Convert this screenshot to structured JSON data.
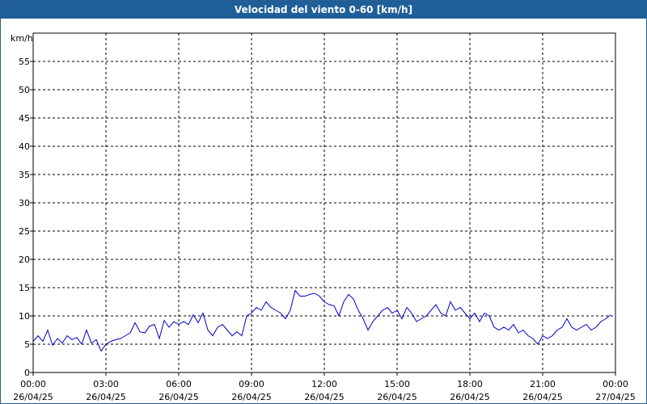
{
  "window": {
    "title": "Velocidad del viento 0-60 [km/h]"
  },
  "chart_data": {
    "type": "line",
    "title": "Velocidad del viento 0-60 [km/h]",
    "ylabel": "km/h",
    "xlabel": "",
    "ylim": [
      0,
      60
    ],
    "xlim": [
      0,
      24
    ],
    "y_ticks": [
      "0",
      "5",
      "10",
      "15",
      "20",
      "25",
      "30",
      "35",
      "40",
      "45",
      "50",
      "55"
    ],
    "x_ticks": [
      {
        "time": "00:00",
        "date": "26/04/25"
      },
      {
        "time": "03:00",
        "date": "26/04/25"
      },
      {
        "time": "06:00",
        "date": "26/04/25"
      },
      {
        "time": "09:00",
        "date": "26/04/25"
      },
      {
        "time": "12:00",
        "date": "26/04/25"
      },
      {
        "time": "15:00",
        "date": "26/04/25"
      },
      {
        "time": "18:00",
        "date": "26/04/25"
      },
      {
        "time": "21:00",
        "date": "26/04/25"
      },
      {
        "time": "00:00",
        "date": "27/04/25"
      }
    ],
    "grid": true,
    "series_color": "#0000cc",
    "series": [
      {
        "x": [
          0.0,
          0.2,
          0.4,
          0.6,
          0.8,
          1.0,
          1.2,
          1.4,
          1.6,
          1.8,
          2.0,
          2.2,
          2.4,
          2.6,
          2.8,
          3.0,
          3.2,
          3.4,
          3.6,
          3.8,
          4.0,
          4.2,
          4.4,
          4.6,
          4.8,
          5.0,
          5.2,
          5.4,
          5.6,
          5.8,
          6.0,
          6.2,
          6.4,
          6.6,
          6.8,
          7.0,
          7.2,
          7.4,
          7.6,
          7.8,
          8.0,
          8.2,
          8.4,
          8.6,
          8.8,
          9.0,
          9.2,
          9.4,
          9.6,
          9.8,
          10.0,
          10.2,
          10.4,
          10.6,
          10.8,
          11.0,
          11.2,
          11.4,
          11.6,
          11.8,
          12.0,
          12.2,
          12.4,
          12.6,
          12.8,
          13.0,
          13.2,
          13.4,
          13.6,
          13.8,
          14.0,
          14.2,
          14.4,
          14.6,
          14.8,
          15.0,
          15.2,
          15.4,
          15.6,
          15.8,
          16.0,
          16.2,
          16.4,
          16.6,
          16.8,
          17.0,
          17.2,
          17.4,
          17.6,
          17.8,
          18.0,
          18.2,
          18.4,
          18.6,
          18.8,
          19.0,
          19.2,
          19.4,
          19.6,
          19.8,
          20.0,
          20.2,
          20.4,
          20.6,
          20.8,
          21.0,
          21.2,
          21.4,
          21.6,
          21.8,
          22.0,
          22.2,
          22.4,
          22.6,
          22.8,
          23.0,
          23.2,
          23.4,
          23.6,
          23.8
        ],
        "y": [
          5.5,
          6.5,
          5.5,
          7.5,
          4.8,
          6.0,
          5.2,
          6.5,
          5.8,
          6.2,
          5.0,
          7.5,
          5.2,
          5.8,
          3.8,
          5.0,
          5.5,
          5.8,
          6.0,
          6.5,
          7.0,
          8.8,
          7.2,
          7.0,
          8.2,
          8.5,
          6.0,
          9.2,
          8.0,
          9.0,
          8.5,
          9.0,
          8.5,
          10.2,
          8.8,
          10.5,
          7.5,
          6.5,
          8.0,
          8.5,
          7.5,
          6.5,
          7.2,
          6.5,
          10.0,
          10.5,
          11.5,
          11.0,
          12.5,
          11.5,
          11.0,
          10.5,
          9.5,
          11.0,
          14.5,
          13.5,
          13.5,
          13.8,
          14.0,
          13.5,
          12.5,
          12.0,
          11.8,
          10.0,
          12.5,
          13.8,
          13.0,
          11.0,
          9.5,
          7.5,
          9.0,
          10.0,
          11.0,
          11.5,
          10.5,
          11.0,
          9.5,
          11.5,
          10.5,
          9.0,
          9.5,
          10.0,
          11.0,
          12.0,
          10.5,
          10.0,
          12.5,
          11.0,
          11.5,
          10.5,
          9.5,
          10.5,
          9.0,
          10.5,
          10.0,
          8.0,
          7.5,
          8.0,
          7.5,
          8.5,
          7.0,
          7.5,
          6.5,
          6.0,
          5.0,
          6.5,
          6.0,
          6.5,
          7.5,
          8.0,
          9.5,
          8.0,
          7.5,
          8.0,
          8.5,
          7.5,
          8.0,
          9.0,
          9.5,
          10.2
        ]
      }
    ]
  }
}
